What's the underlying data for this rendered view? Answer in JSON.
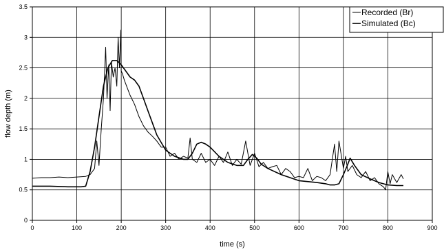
{
  "chart_data": {
    "type": "line",
    "title": "",
    "xlabel": "time (s)",
    "ylabel": "flow depth (m)",
    "xlim": [
      0,
      900
    ],
    "ylim": [
      0,
      3.5
    ],
    "x_ticks": [
      "0",
      "100",
      "200",
      "300",
      "400",
      "500",
      "600",
      "700",
      "800",
      "900"
    ],
    "y_ticks": [
      "0",
      "0.5",
      "1",
      "1.5",
      "2",
      "2.5",
      "3",
      "3.5"
    ],
    "grid": true,
    "legend_position": "top-right",
    "series": [
      {
        "name": "Recorded (Br)",
        "color": "#000000",
        "x": [
          0,
          20,
          40,
          60,
          80,
          100,
          120,
          130,
          140,
          145,
          150,
          155,
          160,
          165,
          168,
          172,
          175,
          178,
          182,
          186,
          190,
          193,
          196,
          199,
          200,
          203,
          207,
          212,
          220,
          230,
          240,
          250,
          260,
          270,
          280,
          290,
          300,
          310,
          320,
          330,
          340,
          350,
          355,
          360,
          370,
          380,
          390,
          400,
          410,
          420,
          430,
          440,
          450,
          460,
          470,
          480,
          490,
          500,
          510,
          520,
          530,
          540,
          550,
          560,
          570,
          580,
          590,
          600,
          610,
          620,
          630,
          640,
          650,
          660,
          670,
          680,
          685,
          690,
          700,
          705,
          710,
          720,
          730,
          740,
          750,
          760,
          770,
          780,
          790,
          795,
          800,
          805,
          810,
          820,
          830,
          835
        ],
        "values": [
          0.69,
          0.7,
          0.7,
          0.71,
          0.7,
          0.71,
          0.72,
          0.75,
          0.85,
          1.3,
          0.9,
          1.5,
          2.0,
          2.84,
          2.0,
          2.55,
          1.8,
          2.6,
          2.35,
          2.5,
          2.2,
          3.0,
          2.5,
          3.12,
          2.45,
          2.4,
          2.3,
          2.2,
          2.05,
          1.9,
          1.7,
          1.55,
          1.45,
          1.38,
          1.3,
          1.2,
          1.2,
          1.05,
          1.1,
          1.0,
          1.05,
          1.02,
          1.35,
          1.0,
          0.95,
          1.1,
          0.95,
          1.0,
          0.9,
          1.05,
          0.95,
          1.12,
          0.9,
          1.0,
          0.92,
          1.3,
          0.9,
          1.1,
          0.88,
          0.95,
          0.85,
          0.88,
          0.9,
          0.75,
          0.85,
          0.8,
          0.7,
          0.72,
          0.7,
          0.85,
          0.65,
          0.72,
          0.7,
          0.65,
          0.75,
          1.25,
          0.8,
          1.3,
          0.85,
          1.05,
          0.8,
          0.9,
          0.75,
          0.7,
          0.8,
          0.65,
          0.7,
          0.6,
          0.55,
          0.5,
          0.8,
          0.6,
          0.75,
          0.62,
          0.75,
          0.68
        ]
      },
      {
        "name": "Simulated (Bc)",
        "color": "#000000",
        "x": [
          0,
          40,
          80,
          110,
          120,
          130,
          140,
          150,
          160,
          170,
          180,
          190,
          200,
          210,
          220,
          230,
          240,
          250,
          260,
          270,
          280,
          300,
          320,
          340,
          350,
          360,
          370,
          380,
          390,
          400,
          420,
          440,
          460,
          475,
          485,
          495,
          505,
          515,
          530,
          560,
          600,
          640,
          660,
          670,
          680,
          690,
          700,
          710,
          715,
          725,
          740,
          760,
          780,
          800,
          820,
          835
        ],
        "values": [
          0.56,
          0.56,
          0.55,
          0.55,
          0.56,
          0.8,
          1.2,
          1.7,
          2.2,
          2.5,
          2.62,
          2.62,
          2.55,
          2.45,
          2.35,
          2.3,
          2.2,
          2.0,
          1.8,
          1.6,
          1.4,
          1.15,
          1.05,
          1.0,
          1.0,
          1.1,
          1.25,
          1.28,
          1.25,
          1.2,
          1.05,
          0.95,
          0.9,
          0.9,
          1.0,
          1.08,
          1.02,
          0.92,
          0.85,
          0.75,
          0.65,
          0.62,
          0.6,
          0.58,
          0.58,
          0.6,
          0.75,
          0.92,
          1.02,
          0.9,
          0.75,
          0.68,
          0.62,
          0.58,
          0.57,
          0.57
        ]
      }
    ]
  }
}
